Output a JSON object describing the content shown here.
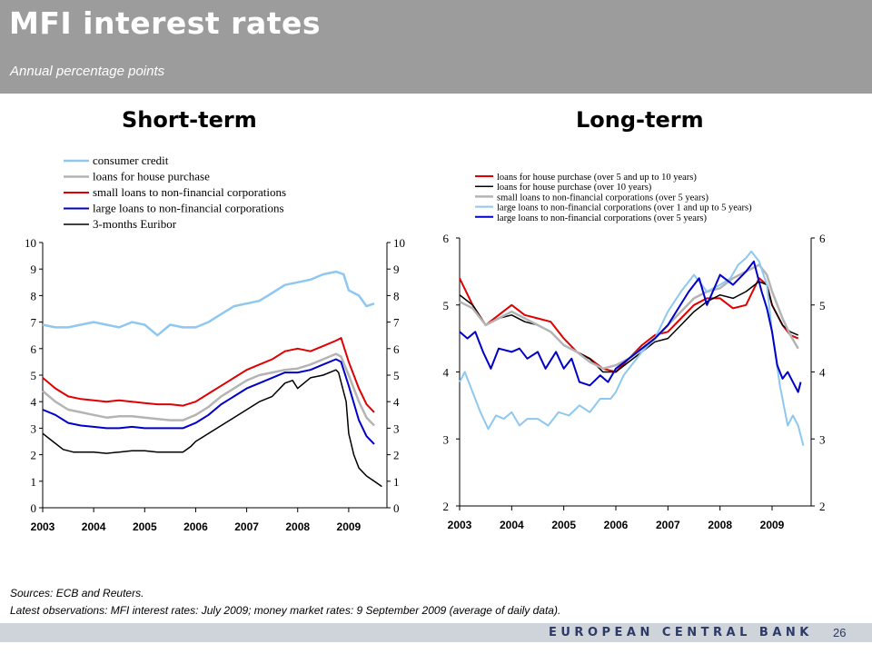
{
  "header": {
    "title": "MFI interest rates",
    "subtitle": "Annual percentage points"
  },
  "panels": {
    "left_title": "Short-term",
    "right_title": "Long-term"
  },
  "footer": {
    "sources": "Sources: ECB and Reuters.",
    "latest": "Latest observations: MFI interest rates: July 2009; money market rates: 9 September 2009 (average of daily data).",
    "bank": "EUROPEAN CENTRAL BANK",
    "page": "26"
  },
  "colors": {
    "light_blue": "#8ec8f0",
    "grey": "#b4b4b4",
    "red": "#e00000",
    "blue": "#0000c8",
    "black": "#000000",
    "header_bg": "#9c9c9c",
    "footer_bg": "#cfd3da",
    "footer_text": "#2b3a67"
  },
  "chart_data": [
    {
      "type": "line",
      "title": "Short-term",
      "x_ticks": [
        "2003",
        "2004",
        "2005",
        "2006",
        "2007",
        "2008",
        "2009"
      ],
      "xlim": [
        2003,
        2009.75
      ],
      "ylim": [
        0,
        10
      ],
      "y_ticks": [
        0,
        1,
        2,
        3,
        4,
        5,
        6,
        7,
        8,
        9,
        10
      ],
      "legend_position": "top",
      "series": [
        {
          "name": "consumer credit",
          "color": "light_blue",
          "width": 2.5,
          "x": [
            2003.0,
            2003.25,
            2003.5,
            2003.75,
            2004.0,
            2004.25,
            2004.5,
            2004.75,
            2005.0,
            2005.25,
            2005.5,
            2005.75,
            2006.0,
            2006.25,
            2006.5,
            2006.75,
            2007.0,
            2007.25,
            2007.5,
            2007.75,
            2008.0,
            2008.25,
            2008.5,
            2008.75,
            2008.9,
            2009.0,
            2009.2,
            2009.35,
            2009.5
          ],
          "y": [
            6.9,
            6.8,
            6.8,
            6.9,
            7.0,
            6.9,
            6.8,
            7.0,
            6.9,
            6.5,
            6.9,
            6.8,
            6.8,
            7.0,
            7.3,
            7.6,
            7.7,
            7.8,
            8.1,
            8.4,
            8.5,
            8.6,
            8.8,
            8.9,
            8.8,
            8.2,
            8.0,
            7.6,
            7.7
          ]
        },
        {
          "name": "loans for house purchase",
          "color": "grey",
          "width": 2.5,
          "x": [
            2003.0,
            2003.25,
            2003.5,
            2003.75,
            2004.0,
            2004.25,
            2004.5,
            2004.75,
            2005.0,
            2005.25,
            2005.5,
            2005.75,
            2006.0,
            2006.25,
            2006.5,
            2006.75,
            2007.0,
            2007.25,
            2007.5,
            2007.75,
            2008.0,
            2008.25,
            2008.5,
            2008.75,
            2008.85,
            2009.0,
            2009.2,
            2009.35,
            2009.5
          ],
          "y": [
            4.4,
            4.0,
            3.7,
            3.6,
            3.5,
            3.4,
            3.45,
            3.45,
            3.4,
            3.35,
            3.3,
            3.3,
            3.5,
            3.8,
            4.2,
            4.5,
            4.8,
            5.0,
            5.1,
            5.2,
            5.25,
            5.4,
            5.6,
            5.8,
            5.7,
            5.0,
            4.0,
            3.4,
            3.1
          ]
        },
        {
          "name": "small loans to non-financial corporations",
          "color": "red",
          "width": 2,
          "x": [
            2003.0,
            2003.25,
            2003.5,
            2003.75,
            2004.0,
            2004.25,
            2004.5,
            2004.75,
            2005.0,
            2005.25,
            2005.5,
            2005.75,
            2006.0,
            2006.25,
            2006.5,
            2006.75,
            2007.0,
            2007.25,
            2007.5,
            2007.75,
            2008.0,
            2008.25,
            2008.5,
            2008.75,
            2008.85,
            2009.0,
            2009.2,
            2009.35,
            2009.5
          ],
          "y": [
            4.9,
            4.5,
            4.2,
            4.1,
            4.05,
            4.0,
            4.05,
            4.0,
            3.95,
            3.9,
            3.9,
            3.85,
            4.0,
            4.3,
            4.6,
            4.9,
            5.2,
            5.4,
            5.6,
            5.9,
            6.0,
            5.9,
            6.1,
            6.3,
            6.4,
            5.5,
            4.5,
            3.9,
            3.6
          ]
        },
        {
          "name": "large loans to non-financial corporations",
          "color": "blue",
          "width": 2,
          "x": [
            2003.0,
            2003.25,
            2003.5,
            2003.75,
            2004.0,
            2004.25,
            2004.5,
            2004.75,
            2005.0,
            2005.25,
            2005.5,
            2005.75,
            2006.0,
            2006.25,
            2006.5,
            2006.75,
            2007.0,
            2007.25,
            2007.5,
            2007.75,
            2008.0,
            2008.25,
            2008.5,
            2008.75,
            2008.85,
            2009.0,
            2009.2,
            2009.35,
            2009.5
          ],
          "y": [
            3.7,
            3.5,
            3.2,
            3.1,
            3.05,
            3.0,
            3.0,
            3.05,
            3.0,
            3.0,
            3.0,
            3.0,
            3.2,
            3.5,
            3.9,
            4.2,
            4.5,
            4.7,
            4.9,
            5.1,
            5.1,
            5.2,
            5.4,
            5.6,
            5.5,
            4.6,
            3.3,
            2.7,
            2.4
          ]
        },
        {
          "name": "3-months Euribor",
          "color": "black",
          "width": 1.5,
          "x": [
            2003.0,
            2003.2,
            2003.4,
            2003.6,
            2003.8,
            2004.0,
            2004.25,
            2004.5,
            2004.75,
            2005.0,
            2005.25,
            2005.5,
            2005.75,
            2005.9,
            2006.0,
            2006.25,
            2006.5,
            2006.75,
            2007.0,
            2007.25,
            2007.5,
            2007.75,
            2007.9,
            2008.0,
            2008.25,
            2008.5,
            2008.75,
            2008.8,
            2008.95,
            2009.0,
            2009.1,
            2009.2,
            2009.35,
            2009.5,
            2009.65
          ],
          "y": [
            2.8,
            2.5,
            2.2,
            2.1,
            2.1,
            2.1,
            2.05,
            2.1,
            2.15,
            2.15,
            2.1,
            2.1,
            2.1,
            2.3,
            2.5,
            2.8,
            3.1,
            3.4,
            3.7,
            4.0,
            4.2,
            4.7,
            4.8,
            4.5,
            4.9,
            5.0,
            5.2,
            5.1,
            4.0,
            2.8,
            2.0,
            1.5,
            1.2,
            1.0,
            0.8
          ]
        }
      ]
    },
    {
      "type": "line",
      "title": "Long-term",
      "x_ticks": [
        "2003",
        "2004",
        "2005",
        "2006",
        "2007",
        "2008",
        "2009"
      ],
      "xlim": [
        2003,
        2009.75
      ],
      "ylim": [
        2,
        6
      ],
      "y_ticks": [
        2,
        3,
        4,
        5,
        6
      ],
      "legend_position": "top",
      "series": [
        {
          "name": "loans for house purchase (over 5 and up to 10 years)",
          "color": "red",
          "width": 2,
          "x": [
            2003.0,
            2003.25,
            2003.5,
            2003.75,
            2004.0,
            2004.25,
            2004.5,
            2004.75,
            2005.0,
            2005.25,
            2005.5,
            2005.75,
            2006.0,
            2006.25,
            2006.5,
            2006.75,
            2007.0,
            2007.25,
            2007.5,
            2007.75,
            2008.0,
            2008.25,
            2008.5,
            2008.75,
            2008.9,
            2009.0,
            2009.2,
            2009.35,
            2009.5
          ],
          "y": [
            5.4,
            5.0,
            4.7,
            4.85,
            5.0,
            4.85,
            4.8,
            4.75,
            4.5,
            4.3,
            4.2,
            4.05,
            4.0,
            4.2,
            4.4,
            4.55,
            4.6,
            4.8,
            5.0,
            5.1,
            5.1,
            4.95,
            5.0,
            5.4,
            5.3,
            5.0,
            4.7,
            4.55,
            4.5
          ]
        },
        {
          "name": "loans for house purchase (over 10 years)",
          "color": "black",
          "width": 1.5,
          "x": [
            2003.0,
            2003.25,
            2003.5,
            2003.75,
            2004.0,
            2004.25,
            2004.5,
            2004.75,
            2005.0,
            2005.25,
            2005.5,
            2005.75,
            2006.0,
            2006.25,
            2006.5,
            2006.75,
            2007.0,
            2007.25,
            2007.5,
            2007.75,
            2008.0,
            2008.25,
            2008.5,
            2008.75,
            2008.9,
            2009.0,
            2009.2,
            2009.35,
            2009.5
          ],
          "y": [
            5.15,
            5.0,
            4.7,
            4.8,
            4.85,
            4.75,
            4.7,
            4.6,
            4.4,
            4.3,
            4.2,
            4.0,
            4.0,
            4.15,
            4.3,
            4.45,
            4.5,
            4.7,
            4.9,
            5.05,
            5.15,
            5.1,
            5.2,
            5.35,
            5.3,
            5.0,
            4.7,
            4.6,
            4.55
          ]
        },
        {
          "name": "small loans to non-financial corporations (over 5 years)",
          "color": "grey",
          "width": 2.5,
          "x": [
            2003.0,
            2003.25,
            2003.5,
            2003.75,
            2004.0,
            2004.25,
            2004.5,
            2004.75,
            2005.0,
            2005.25,
            2005.5,
            2005.75,
            2006.0,
            2006.25,
            2006.5,
            2006.75,
            2007.0,
            2007.25,
            2007.5,
            2007.75,
            2008.0,
            2008.25,
            2008.5,
            2008.75,
            2008.9,
            2009.0,
            2009.2,
            2009.35,
            2009.5
          ],
          "y": [
            5.05,
            4.95,
            4.7,
            4.8,
            4.9,
            4.8,
            4.7,
            4.6,
            4.4,
            4.3,
            4.15,
            4.05,
            4.1,
            4.2,
            4.35,
            4.5,
            4.7,
            4.9,
            5.1,
            5.2,
            5.25,
            5.4,
            5.5,
            5.6,
            5.45,
            5.2,
            4.8,
            4.55,
            4.35
          ]
        },
        {
          "name": "large loans to non-financial corporations (over 1 and up to 5 years)",
          "color": "light_blue",
          "width": 2,
          "x": [
            2003.0,
            2003.1,
            2003.25,
            2003.4,
            2003.55,
            2003.7,
            2003.85,
            2004.0,
            2004.15,
            2004.3,
            2004.5,
            2004.7,
            2004.9,
            2005.1,
            2005.3,
            2005.5,
            2005.7,
            2005.9,
            2006.0,
            2006.15,
            2006.3,
            2006.5,
            2006.75,
            2007.0,
            2007.25,
            2007.5,
            2007.75,
            2008.0,
            2008.2,
            2008.35,
            2008.5,
            2008.6,
            2008.75,
            2008.9,
            2009.0,
            2009.15,
            2009.3,
            2009.4,
            2009.5,
            2009.6
          ],
          "y": [
            3.85,
            4.0,
            3.7,
            3.4,
            3.15,
            3.35,
            3.3,
            3.4,
            3.2,
            3.3,
            3.3,
            3.2,
            3.4,
            3.35,
            3.5,
            3.4,
            3.6,
            3.6,
            3.7,
            3.95,
            4.1,
            4.3,
            4.5,
            4.9,
            5.2,
            5.45,
            5.2,
            5.3,
            5.4,
            5.6,
            5.7,
            5.8,
            5.65,
            5.3,
            4.6,
            3.8,
            3.2,
            3.35,
            3.2,
            2.9
          ]
        },
        {
          "name": "large loans to non-financial corporations (over 5 years)",
          "color": "blue",
          "width": 2,
          "x": [
            2003.0,
            2003.15,
            2003.3,
            2003.45,
            2003.6,
            2003.75,
            2004.0,
            2004.15,
            2004.3,
            2004.5,
            2004.65,
            2004.85,
            2005.0,
            2005.15,
            2005.3,
            2005.5,
            2005.7,
            2005.85,
            2006.0,
            2006.25,
            2006.5,
            2006.75,
            2007.0,
            2007.2,
            2007.4,
            2007.6,
            2007.75,
            2008.0,
            2008.25,
            2008.5,
            2008.65,
            2008.8,
            2008.9,
            2009.0,
            2009.1,
            2009.2,
            2009.3,
            2009.4,
            2009.5,
            2009.55
          ],
          "y": [
            4.6,
            4.5,
            4.6,
            4.3,
            4.05,
            4.35,
            4.3,
            4.35,
            4.2,
            4.3,
            4.05,
            4.3,
            4.05,
            4.2,
            3.85,
            3.8,
            3.95,
            3.85,
            4.05,
            4.2,
            4.35,
            4.5,
            4.7,
            4.95,
            5.2,
            5.4,
            5.0,
            5.45,
            5.3,
            5.5,
            5.65,
            5.2,
            4.95,
            4.6,
            4.1,
            3.9,
            4.0,
            3.85,
            3.7,
            3.85
          ]
        }
      ]
    }
  ]
}
